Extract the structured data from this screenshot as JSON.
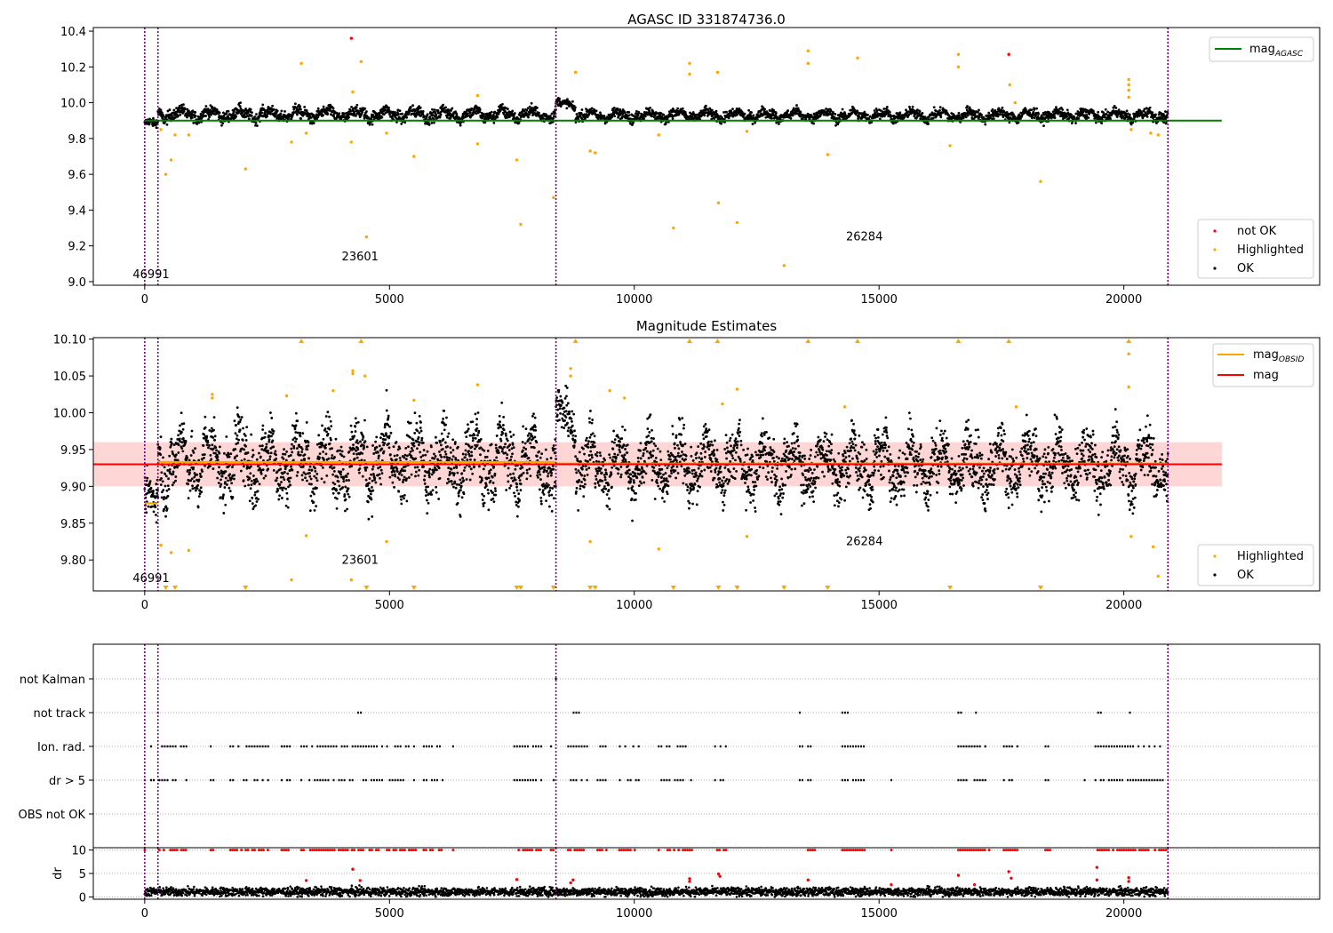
{
  "chart_data": [
    {
      "type": "scatter",
      "title": "AGASC ID 331874736.0",
      "xlim": [
        -1050,
        24000
      ],
      "ylim": [
        8.98,
        10.42
      ],
      "x_ticks": [
        0,
        5000,
        10000,
        15000,
        20000
      ],
      "y_ticks": [
        9.0,
        9.2,
        9.4,
        9.6,
        9.8,
        10.0,
        10.2,
        10.4
      ],
      "grid": false,
      "obsid_boundaries": [
        0,
        270,
        8400,
        20900
      ],
      "obsid_labels": [
        {
          "text": "46991",
          "x": 130,
          "y": 9.02
        },
        {
          "text": "23601",
          "x": 4400,
          "y": 9.12
        },
        {
          "text": "26284",
          "x": 14700,
          "y": 9.23
        }
      ],
      "reference_lines": [
        {
          "name": "mag_AGASC",
          "value": 9.9,
          "x_range": [
            0,
            22000
          ]
        }
      ],
      "series_segments": [
        {
          "x_range": [
            0,
            270
          ],
          "base": 9.88,
          "spread": 0.025
        },
        {
          "x_range": [
            270,
            8400
          ],
          "base": 9.935,
          "spread": 0.035
        },
        {
          "x_range": [
            8400,
            8800
          ],
          "base": 9.99,
          "spread": 0.025
        },
        {
          "x_range": [
            8800,
            20900
          ],
          "base": 9.93,
          "spread": 0.03
        }
      ],
      "highlighted_points": [
        [
          330,
          9.85
        ],
        [
          430,
          9.6
        ],
        [
          540,
          9.68
        ],
        [
          620,
          9.82
        ],
        [
          900,
          9.82
        ],
        [
          2060,
          9.63
        ],
        [
          3000,
          9.78
        ],
        [
          3200,
          10.22
        ],
        [
          3300,
          9.83
        ],
        [
          4220,
          9.78
        ],
        [
          4250,
          10.06
        ],
        [
          4420,
          10.23
        ],
        [
          4530,
          9.25
        ],
        [
          4940,
          9.83
        ],
        [
          5500,
          9.7
        ],
        [
          6800,
          10.04
        ],
        [
          6800,
          9.77
        ],
        [
          7600,
          9.68
        ],
        [
          7680,
          9.32
        ],
        [
          8350,
          9.47
        ],
        [
          8800,
          10.17
        ],
        [
          9100,
          9.73
        ],
        [
          9200,
          9.72
        ],
        [
          10500,
          9.82
        ],
        [
          10800,
          9.3
        ],
        [
          11130,
          10.22
        ],
        [
          11130,
          10.16
        ],
        [
          11700,
          10.17
        ],
        [
          11720,
          9.44
        ],
        [
          12100,
          9.33
        ],
        [
          12300,
          9.84
        ],
        [
          13060,
          9.09
        ],
        [
          13550,
          10.29
        ],
        [
          13550,
          10.22
        ],
        [
          13950,
          9.71
        ],
        [
          14560,
          10.25
        ],
        [
          16450,
          9.76
        ],
        [
          16620,
          10.27
        ],
        [
          16620,
          10.2
        ],
        [
          17670,
          10.1
        ],
        [
          17780,
          10.0
        ],
        [
          18300,
          9.56
        ],
        [
          20100,
          10.13
        ],
        [
          20100,
          10.1
        ],
        [
          20100,
          10.07
        ],
        [
          20100,
          10.03
        ],
        [
          20150,
          9.85
        ],
        [
          20550,
          9.83
        ],
        [
          20700,
          9.82
        ]
      ],
      "not_ok_points": [
        [
          4220,
          10.36
        ],
        [
          17650,
          10.27
        ]
      ],
      "legends": [
        {
          "position": "upper-right",
          "entries": [
            {
              "label": "mag",
              "subscript": "AGASC",
              "color": "#008000",
              "kind": "line"
            }
          ]
        },
        {
          "position": "lower-right",
          "entries": [
            {
              "label": "not OK",
              "color": "#ff0000",
              "kind": "dot"
            },
            {
              "label": "Highlighted",
              "color": "#ffa500",
              "kind": "dot"
            },
            {
              "label": "OK",
              "color": "#000000",
              "kind": "dot"
            }
          ]
        }
      ]
    },
    {
      "type": "scatter",
      "title": "Magnitude Estimates",
      "xlim": [
        -1050,
        24000
      ],
      "ylim": [
        9.758,
        10.102
      ],
      "x_ticks": [
        0,
        5000,
        10000,
        15000,
        20000
      ],
      "y_ticks": [
        9.8,
        9.85,
        9.9,
        9.95,
        10.0,
        10.05,
        10.1
      ],
      "grid": false,
      "obsid_boundaries": [
        0,
        270,
        8400,
        20900
      ],
      "obsid_labels": [
        {
          "text": "46991",
          "x": 130,
          "y": 9.77
        },
        {
          "text": "23601",
          "x": 4400,
          "y": 9.795
        },
        {
          "text": "26284",
          "x": 14700,
          "y": 9.82
        }
      ],
      "mag_band": {
        "low": 9.9,
        "high": 9.96,
        "x_range": [
          -1050,
          22000
        ]
      },
      "mag_line": {
        "value": 9.93,
        "x_range": [
          -1050,
          22000
        ]
      },
      "mag_obsid_lines": [
        {
          "x_range": [
            0,
            270
          ],
          "value": 9.877
        },
        {
          "x_range": [
            270,
            8400
          ],
          "value": 9.933
        },
        {
          "x_range": [
            8400,
            20900
          ],
          "value": 9.931
        }
      ],
      "series_segments": [
        {
          "x_range": [
            0,
            270
          ],
          "base": 9.875,
          "spread": 0.03
        },
        {
          "x_range": [
            270,
            8400
          ],
          "base": 9.935,
          "spread": 0.045
        },
        {
          "x_range": [
            8400,
            8800
          ],
          "base": 9.99,
          "spread": 0.03
        },
        {
          "x_range": [
            8800,
            20900
          ],
          "base": 9.93,
          "spread": 0.04
        }
      ],
      "highlighted_points": [
        [
          330,
          9.82
        ],
        [
          540,
          9.81
        ],
        [
          900,
          9.813
        ],
        [
          1380,
          10.025
        ],
        [
          1380,
          10.02
        ],
        [
          2900,
          10.023
        ],
        [
          3000,
          9.773
        ],
        [
          3300,
          9.833
        ],
        [
          3850,
          10.03
        ],
        [
          4220,
          9.773
        ],
        [
          4250,
          10.057
        ],
        [
          4250,
          10.053
        ],
        [
          4500,
          10.05
        ],
        [
          4940,
          9.825
        ],
        [
          5500,
          10.017
        ],
        [
          6800,
          10.038
        ],
        [
          8700,
          10.06
        ],
        [
          8700,
          10.05
        ],
        [
          9100,
          9.825
        ],
        [
          9500,
          10.03
        ],
        [
          9800,
          10.02
        ],
        [
          10500,
          9.815
        ],
        [
          11800,
          10.012
        ],
        [
          12100,
          10.032
        ],
        [
          12300,
          9.832
        ],
        [
          14300,
          10.008
        ],
        [
          17800,
          10.008
        ],
        [
          20100,
          10.08
        ],
        [
          20100,
          10.035
        ],
        [
          20150,
          9.832
        ],
        [
          20600,
          9.818
        ],
        [
          20700,
          9.778
        ]
      ],
      "clipped_above_x": [
        3200,
        4420,
        8800,
        11130,
        11700,
        13550,
        14560,
        16620,
        17650,
        20100
      ],
      "clipped_below_x": [
        430,
        620,
        2060,
        4530,
        5500,
        7600,
        7680,
        8350,
        9100,
        9200,
        10800,
        11720,
        12100,
        13060,
        13950,
        16450,
        18300
      ],
      "legends": [
        {
          "position": "upper-right",
          "entries": [
            {
              "label": "mag",
              "subscript": "OBSID",
              "color": "#ffa500",
              "kind": "line"
            },
            {
              "label": "mag",
              "subscript": "",
              "color": "#ff0000",
              "kind": "line"
            }
          ]
        },
        {
          "position": "lower-right",
          "entries": [
            {
              "label": "Highlighted",
              "color": "#ffa500",
              "kind": "dot"
            },
            {
              "label": "OK",
              "color": "#000000",
              "kind": "dot"
            }
          ]
        }
      ]
    },
    {
      "type": "scatter",
      "title": "",
      "xlim": [
        -1050,
        24000
      ],
      "categories": [
        "not Kalman",
        "not track",
        "Ion. rad.",
        "dr > 5",
        "OBS not OK"
      ],
      "grid": true,
      "obsid_boundaries": [
        0,
        270,
        8400,
        20900
      ],
      "flag_ranges": [
        {
          "flag": "not track",
          "ranges": [
            [
              270,
              310
            ],
            [
              4360,
              4460
            ],
            [
              8760,
              8880
            ],
            [
              13380,
              13400
            ],
            [
              14250,
              14380
            ],
            [
              16620,
              16720
            ],
            [
              16980,
              17070
            ],
            [
              19420,
              19530
            ],
            [
              20070,
              20160
            ]
          ]
        },
        {
          "flag": "not Kalman",
          "ranges": [
            [
              8400,
              8410
            ]
          ]
        },
        {
          "flag": "Ion. rad.",
          "ranges": [
            [
              0,
              30
            ],
            [
              130,
              200
            ],
            [
              300,
              880
            ],
            [
              1350,
              1420
            ],
            [
              1750,
              2550
            ],
            [
              2800,
              3000
            ],
            [
              3200,
              4850
            ],
            [
              4950,
              5550
            ],
            [
              5700,
              6100
            ],
            [
              6300,
              6330
            ],
            [
              7550,
              8100
            ],
            [
              8300,
              8400
            ],
            [
              8650,
              9050
            ],
            [
              9250,
              9450
            ],
            [
              9650,
              10100
            ],
            [
              10500,
              11200
            ],
            [
              11650,
              11900
            ],
            [
              13380,
              13450
            ],
            [
              13550,
              13700
            ],
            [
              14250,
              14700
            ],
            [
              15250,
              15270
            ],
            [
              16620,
              17250
            ],
            [
              17550,
              17900
            ],
            [
              18400,
              18500
            ],
            [
              19200,
              19230
            ],
            [
              19420,
              20900
            ]
          ]
        },
        {
          "flag": "dr > 5",
          "ranges": [
            [
              0,
              30
            ],
            [
              130,
              200
            ],
            [
              300,
              880
            ],
            [
              1350,
              1420
            ],
            [
              1750,
              2550
            ],
            [
              2800,
              3000
            ],
            [
              3200,
              4850
            ],
            [
              4950,
              5550
            ],
            [
              5700,
              6100
            ],
            [
              6300,
              6330
            ],
            [
              7550,
              8100
            ],
            [
              8300,
              8400
            ],
            [
              8650,
              9050
            ],
            [
              9250,
              9450
            ],
            [
              9650,
              10100
            ],
            [
              10500,
              11200
            ],
            [
              11650,
              11900
            ],
            [
              13380,
              13450
            ],
            [
              13550,
              13700
            ],
            [
              14250,
              14700
            ],
            [
              15250,
              15270
            ],
            [
              16620,
              17250
            ],
            [
              17550,
              17900
            ],
            [
              18400,
              18500
            ],
            [
              19200,
              19230
            ],
            [
              19420,
              20900
            ]
          ]
        }
      ]
    },
    {
      "type": "scatter",
      "title": "",
      "ylabel": "dr",
      "xlim": [
        -1050,
        24000
      ],
      "ylim": [
        -0.5,
        10.5
      ],
      "x_ticks": [
        0,
        5000,
        10000,
        15000,
        20000
      ],
      "y_ticks": [
        0,
        5,
        10
      ],
      "grid": true,
      "obsid_boundaries": [
        0,
        270,
        8400,
        20900
      ],
      "series_segments": [
        {
          "x_range": [
            0,
            20900
          ],
          "base": 1.1,
          "spread": 0.9
        }
      ],
      "capped_points_value": 10,
      "red_points": [
        [
          4250,
          5.9
        ],
        [
          4400,
          3.5
        ],
        [
          8700,
          3.0
        ],
        [
          8750,
          3.6
        ],
        [
          11130,
          3.3
        ],
        [
          11130,
          3.9
        ],
        [
          11720,
          4.9
        ],
        [
          11750,
          4.4
        ],
        [
          13550,
          3.6
        ],
        [
          15250,
          2.6
        ],
        [
          16620,
          4.6
        ],
        [
          16950,
          2.6
        ],
        [
          17650,
          5.4
        ],
        [
          17700,
          4.0
        ],
        [
          19450,
          6.3
        ],
        [
          19450,
          3.6
        ],
        [
          20100,
          4.1
        ],
        [
          20100,
          3.3
        ],
        [
          7600,
          3.7
        ],
        [
          3300,
          3.5
        ]
      ]
    }
  ],
  "colors": {
    "ok": "#000000",
    "highlighted": "#ffa500",
    "not_ok": "#ff0000",
    "agasc_line": "#008000",
    "obsid_line": "#ffa500",
    "mag_line": "#ff0000",
    "boundary_line": "#800080",
    "band_fill": "#ffb5b5"
  }
}
